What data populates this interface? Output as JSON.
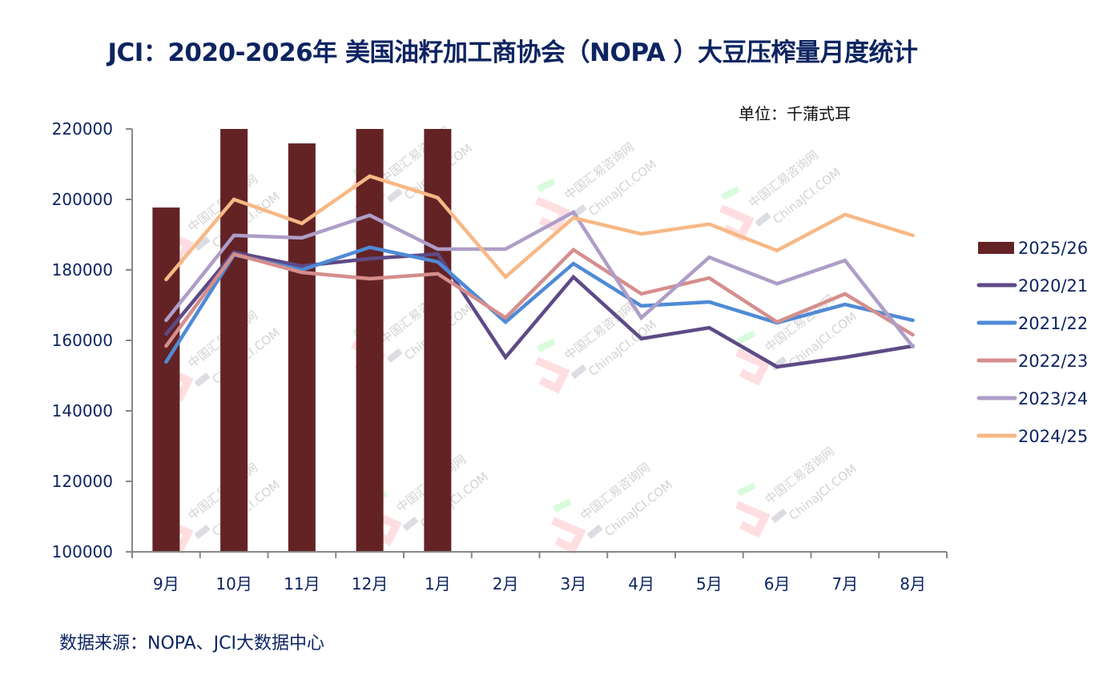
{
  "title": "JCI：2020-2026年 美国油籽加工商协会（NOPA ）大豆压榨量月度统计",
  "unit_label": "单位：千蒲式耳",
  "source_label": "数据来源：NOPA、JCI大数据中心",
  "watermark": {
    "line1": "中国汇易咨询网",
    "line2": "ChinaJCI.COM"
  },
  "chart_data": {
    "type": "bar+line",
    "title": "JCI：2020-2026年 美国油籽加工商协会（NOPA ）大豆压榨量月度统计",
    "xlabel": "",
    "ylabel": "千蒲式耳",
    "ylim": [
      100000,
      220000
    ],
    "yticks": [
      100000,
      120000,
      140000,
      160000,
      180000,
      200000,
      220000
    ],
    "grid": false,
    "legend_position": "right",
    "categories": [
      "9月",
      "10月",
      "11月",
      "12月",
      "1月",
      "2月",
      "3月",
      "4月",
      "5月",
      "6月",
      "7月",
      "8月"
    ],
    "series": [
      {
        "name": "2025/26",
        "kind": "bar",
        "color": "#632325",
        "values": [
          197700,
          220000,
          215900,
          220000,
          220000,
          null,
          null,
          null,
          null,
          null,
          null,
          null
        ]
      },
      {
        "name": "2020/21",
        "kind": "line",
        "color": "#5e4a86",
        "values": [
          161800,
          185000,
          181100,
          183200,
          184500,
          155200,
          178000,
          160500,
          163600,
          152500,
          155200,
          158400
        ]
      },
      {
        "name": "2021/22",
        "kind": "line",
        "color": "#4f8ad6",
        "values": [
          153900,
          184300,
          180000,
          186400,
          182300,
          165200,
          181800,
          169800,
          170900,
          165000,
          170200,
          165700
        ]
      },
      {
        "name": "2022/23",
        "kind": "line",
        "color": "#d58e8c",
        "values": [
          158400,
          184500,
          179300,
          177500,
          178900,
          166400,
          185700,
          173200,
          177700,
          165200,
          173200,
          161600
        ]
      },
      {
        "name": "2023/24",
        "kind": "line",
        "color": "#ae9dc8",
        "values": [
          165700,
          189800,
          189100,
          195500,
          185900,
          185900,
          196400,
          166400,
          183600,
          176100,
          182700,
          158200
        ]
      },
      {
        "name": "2024/25",
        "kind": "line",
        "color": "#f7b885",
        "values": [
          177300,
          200000,
          193200,
          206600,
          200500,
          178000,
          194800,
          190200,
          193000,
          185500,
          195700,
          189800
        ]
      }
    ]
  }
}
